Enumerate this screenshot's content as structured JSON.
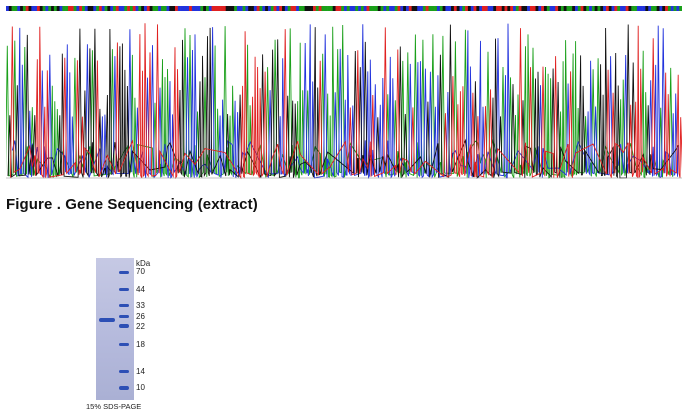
{
  "figure": {
    "caption": "Figure . Gene Sequencing (extract)"
  },
  "chromatogram": {
    "colors": {
      "A": "#1aa01a",
      "C": "#2233dd",
      "G": "#111111",
      "T": "#e02020"
    }
  },
  "gel": {
    "caption": "15% SDS-PAGE",
    "unit": "kDa",
    "markers": [
      "70",
      "44",
      "33",
      "26",
      "22",
      "18",
      "14",
      "10"
    ],
    "lane_color": "#b4b9dc",
    "band_color": "#2d4fb5"
  }
}
